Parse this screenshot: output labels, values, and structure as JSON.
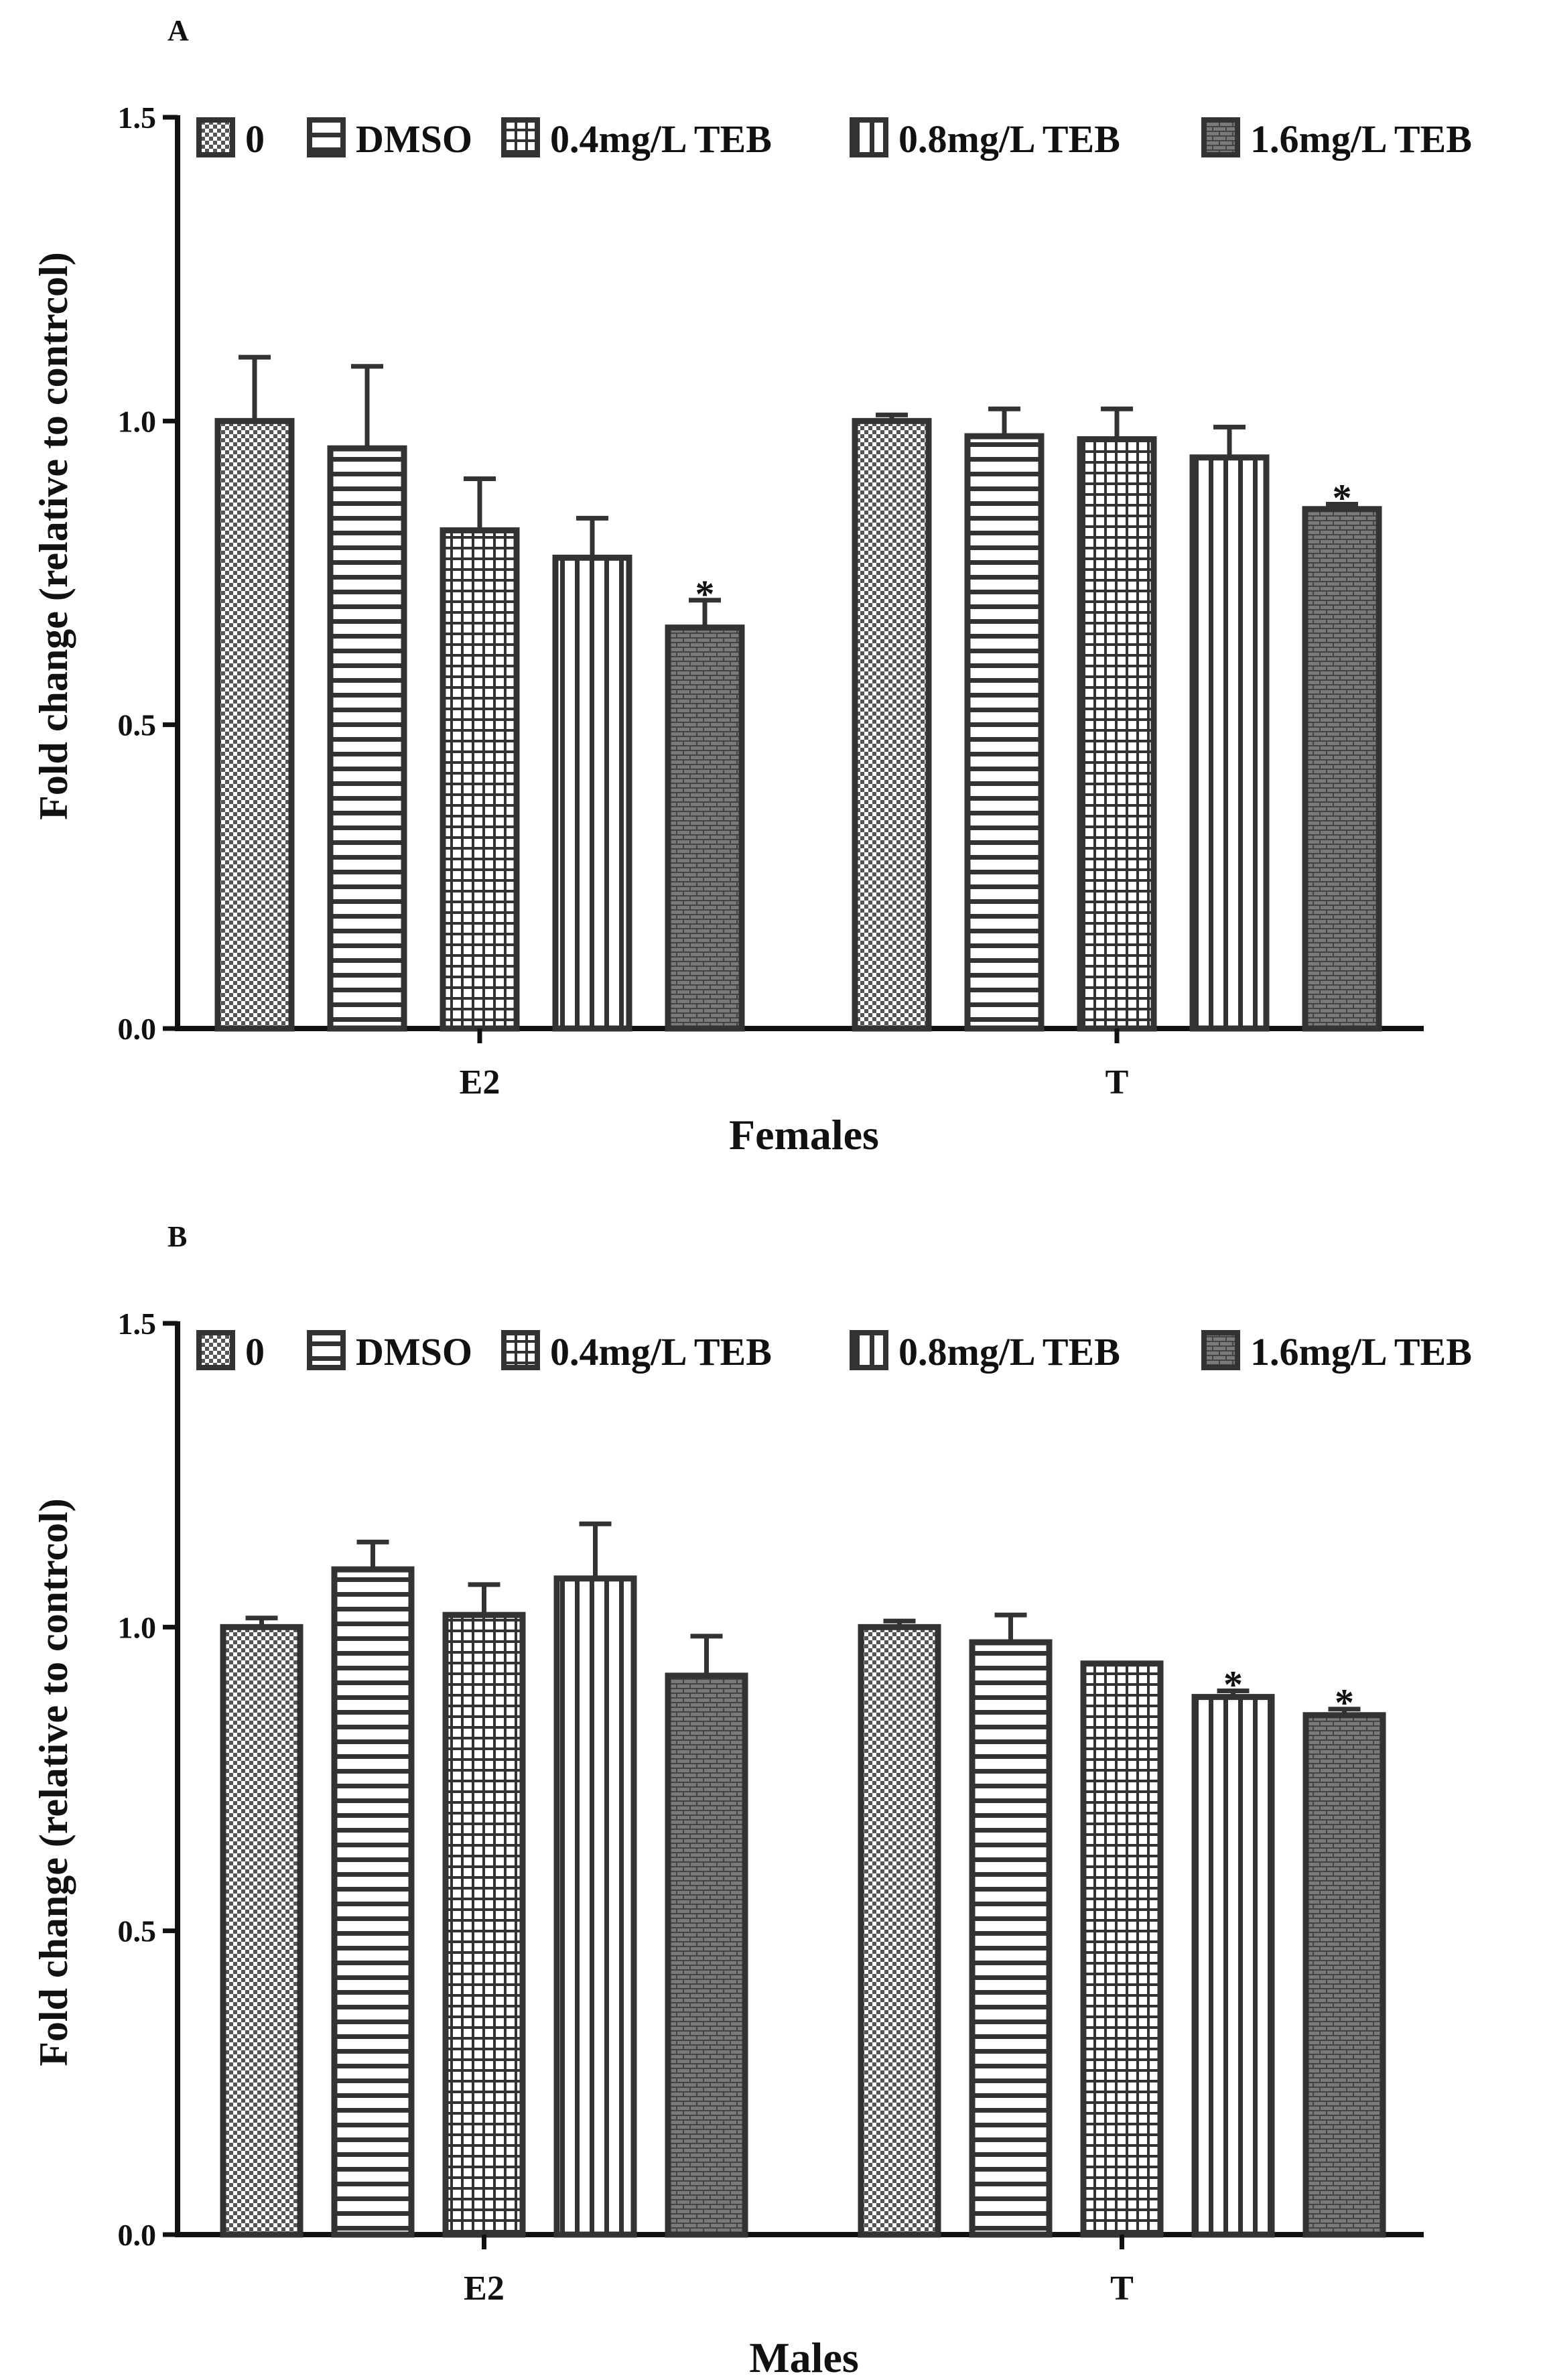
{
  "figure": {
    "colors": {
      "bar_stroke": "#333333",
      "axis": "#111111",
      "text": "#111111"
    },
    "y_axis_label": "Fold change (relative to contrcol)",
    "legend_entries": [
      "0",
      "DMSO",
      "0.4mg/L TEB",
      "0.8mg/L TEB",
      "1.6mg/L TEB"
    ],
    "legend_patterns": [
      "checker-icon",
      "horizontal-lines-icon",
      "grid-icon",
      "vertical-lines-icon",
      "brick-icon"
    ]
  },
  "chart_data": [
    {
      "type": "bar",
      "panel_label": "A",
      "title": "",
      "xlabel": "Females",
      "ylabel": "Fold change (relative to contrcol)",
      "ylim": [
        0,
        1.5
      ],
      "yticks": [
        0.0,
        0.5,
        1.0,
        1.5
      ],
      "ytick_labels": [
        "0.0",
        "0.5",
        "1.0",
        "1.5"
      ],
      "categories": [
        "E2",
        "T"
      ],
      "legend_position": "top",
      "series": [
        {
          "name": "0",
          "values": [
            1.0,
            1.0
          ],
          "errors": [
            0.105,
            0.01
          ],
          "significance": [
            "",
            ""
          ]
        },
        {
          "name": "DMSO",
          "values": [
            0.955,
            0.975
          ],
          "errors": [
            0.135,
            0.045
          ],
          "significance": [
            "",
            ""
          ]
        },
        {
          "name": "0.4mg/L TEB",
          "values": [
            0.82,
            0.97
          ],
          "errors": [
            0.085,
            0.05
          ],
          "significance": [
            "",
            ""
          ]
        },
        {
          "name": "0.8mg/L TEB",
          "values": [
            0.775,
            0.94
          ],
          "errors": [
            0.065,
            0.05
          ],
          "significance": [
            "",
            ""
          ]
        },
        {
          "name": "1.6mg/L TEB",
          "values": [
            0.66,
            0.855
          ],
          "errors": [
            0.045,
            0.008
          ],
          "significance": [
            "*",
            "*"
          ]
        }
      ]
    },
    {
      "type": "bar",
      "panel_label": "B",
      "title": "",
      "xlabel": "Males",
      "ylabel": "Fold change (relative to contrcol)",
      "ylim": [
        0,
        1.5
      ],
      "yticks": [
        0.0,
        0.5,
        1.0,
        1.5
      ],
      "ytick_labels": [
        "0.0",
        "0.5",
        "1.0",
        "1.5"
      ],
      "categories": [
        "E2",
        "T"
      ],
      "legend_position": "top",
      "series": [
        {
          "name": "0",
          "values": [
            1.0,
            1.0
          ],
          "errors": [
            0.015,
            0.01
          ],
          "significance": [
            "",
            ""
          ]
        },
        {
          "name": "DMSO",
          "values": [
            1.095,
            0.975
          ],
          "errors": [
            0.045,
            0.045
          ],
          "significance": [
            "",
            ""
          ]
        },
        {
          "name": "0.4mg/L TEB",
          "values": [
            1.02,
            0.94
          ],
          "errors": [
            0.05,
            0.0
          ],
          "significance": [
            "",
            ""
          ]
        },
        {
          "name": "0.8mg/L TEB",
          "values": [
            1.08,
            0.885
          ],
          "errors": [
            0.09,
            0.01
          ],
          "significance": [
            "",
            "*"
          ]
        },
        {
          "name": "1.6mg/L TEB",
          "values": [
            0.92,
            0.855
          ],
          "errors": [
            0.065,
            0.01
          ],
          "significance": [
            "",
            "*"
          ]
        }
      ]
    }
  ]
}
